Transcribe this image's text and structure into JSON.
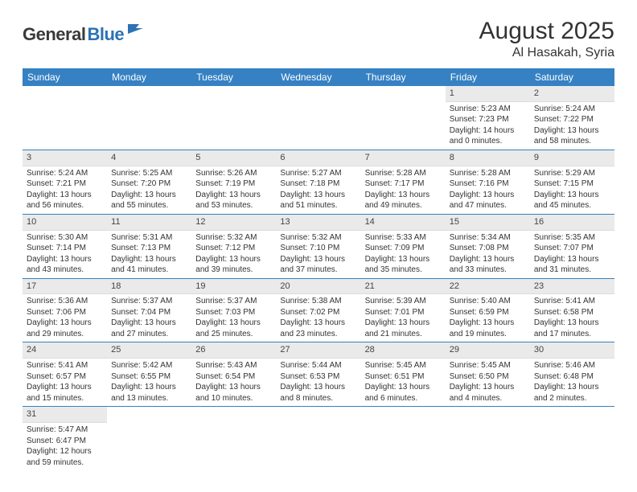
{
  "logo": {
    "part1": "General",
    "part2": "Blue"
  },
  "title": "August 2025",
  "location": "Al Hasakah, Syria",
  "colors": {
    "header_bg": "#3681c3",
    "header_fg": "#ffffff",
    "daynum_bg": "#eaeaea",
    "text": "#333333",
    "logo_dark": "#3a3a3a",
    "logo_blue": "#2d72b5",
    "row_sep": "#3681c3"
  },
  "weekdays": [
    "Sunday",
    "Monday",
    "Tuesday",
    "Wednesday",
    "Thursday",
    "Friday",
    "Saturday"
  ],
  "first_weekday_index": 5,
  "days": [
    {
      "n": 1,
      "sunrise": "5:23 AM",
      "sunset": "7:23 PM",
      "daylight": "14 hours and 0 minutes."
    },
    {
      "n": 2,
      "sunrise": "5:24 AM",
      "sunset": "7:22 PM",
      "daylight": "13 hours and 58 minutes."
    },
    {
      "n": 3,
      "sunrise": "5:24 AM",
      "sunset": "7:21 PM",
      "daylight": "13 hours and 56 minutes."
    },
    {
      "n": 4,
      "sunrise": "5:25 AM",
      "sunset": "7:20 PM",
      "daylight": "13 hours and 55 minutes."
    },
    {
      "n": 5,
      "sunrise": "5:26 AM",
      "sunset": "7:19 PM",
      "daylight": "13 hours and 53 minutes."
    },
    {
      "n": 6,
      "sunrise": "5:27 AM",
      "sunset": "7:18 PM",
      "daylight": "13 hours and 51 minutes."
    },
    {
      "n": 7,
      "sunrise": "5:28 AM",
      "sunset": "7:17 PM",
      "daylight": "13 hours and 49 minutes."
    },
    {
      "n": 8,
      "sunrise": "5:28 AM",
      "sunset": "7:16 PM",
      "daylight": "13 hours and 47 minutes."
    },
    {
      "n": 9,
      "sunrise": "5:29 AM",
      "sunset": "7:15 PM",
      "daylight": "13 hours and 45 minutes."
    },
    {
      "n": 10,
      "sunrise": "5:30 AM",
      "sunset": "7:14 PM",
      "daylight": "13 hours and 43 minutes."
    },
    {
      "n": 11,
      "sunrise": "5:31 AM",
      "sunset": "7:13 PM",
      "daylight": "13 hours and 41 minutes."
    },
    {
      "n": 12,
      "sunrise": "5:32 AM",
      "sunset": "7:12 PM",
      "daylight": "13 hours and 39 minutes."
    },
    {
      "n": 13,
      "sunrise": "5:32 AM",
      "sunset": "7:10 PM",
      "daylight": "13 hours and 37 minutes."
    },
    {
      "n": 14,
      "sunrise": "5:33 AM",
      "sunset": "7:09 PM",
      "daylight": "13 hours and 35 minutes."
    },
    {
      "n": 15,
      "sunrise": "5:34 AM",
      "sunset": "7:08 PM",
      "daylight": "13 hours and 33 minutes."
    },
    {
      "n": 16,
      "sunrise": "5:35 AM",
      "sunset": "7:07 PM",
      "daylight": "13 hours and 31 minutes."
    },
    {
      "n": 17,
      "sunrise": "5:36 AM",
      "sunset": "7:06 PM",
      "daylight": "13 hours and 29 minutes."
    },
    {
      "n": 18,
      "sunrise": "5:37 AM",
      "sunset": "7:04 PM",
      "daylight": "13 hours and 27 minutes."
    },
    {
      "n": 19,
      "sunrise": "5:37 AM",
      "sunset": "7:03 PM",
      "daylight": "13 hours and 25 minutes."
    },
    {
      "n": 20,
      "sunrise": "5:38 AM",
      "sunset": "7:02 PM",
      "daylight": "13 hours and 23 minutes."
    },
    {
      "n": 21,
      "sunrise": "5:39 AM",
      "sunset": "7:01 PM",
      "daylight": "13 hours and 21 minutes."
    },
    {
      "n": 22,
      "sunrise": "5:40 AM",
      "sunset": "6:59 PM",
      "daylight": "13 hours and 19 minutes."
    },
    {
      "n": 23,
      "sunrise": "5:41 AM",
      "sunset": "6:58 PM",
      "daylight": "13 hours and 17 minutes."
    },
    {
      "n": 24,
      "sunrise": "5:41 AM",
      "sunset": "6:57 PM",
      "daylight": "13 hours and 15 minutes."
    },
    {
      "n": 25,
      "sunrise": "5:42 AM",
      "sunset": "6:55 PM",
      "daylight": "13 hours and 13 minutes."
    },
    {
      "n": 26,
      "sunrise": "5:43 AM",
      "sunset": "6:54 PM",
      "daylight": "13 hours and 10 minutes."
    },
    {
      "n": 27,
      "sunrise": "5:44 AM",
      "sunset": "6:53 PM",
      "daylight": "13 hours and 8 minutes."
    },
    {
      "n": 28,
      "sunrise": "5:45 AM",
      "sunset": "6:51 PM",
      "daylight": "13 hours and 6 minutes."
    },
    {
      "n": 29,
      "sunrise": "5:45 AM",
      "sunset": "6:50 PM",
      "daylight": "13 hours and 4 minutes."
    },
    {
      "n": 30,
      "sunrise": "5:46 AM",
      "sunset": "6:48 PM",
      "daylight": "13 hours and 2 minutes."
    },
    {
      "n": 31,
      "sunrise": "5:47 AM",
      "sunset": "6:47 PM",
      "daylight": "12 hours and 59 minutes."
    }
  ],
  "labels": {
    "sunrise": "Sunrise: ",
    "sunset": "Sunset: ",
    "daylight": "Daylight: "
  }
}
